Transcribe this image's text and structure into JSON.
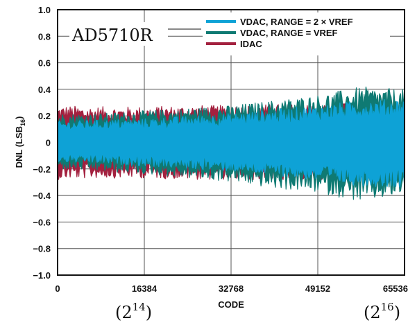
{
  "chart_data": {
    "type": "line",
    "title": "AD5710R",
    "xlabel": "CODE",
    "ylabel_main": "DNL (LSB",
    "ylabel_sub": "16",
    "ylabel_end": ")",
    "xlim": [
      0,
      65536
    ],
    "ylim": [
      -1.0,
      1.0
    ],
    "grid": true,
    "legend_position": "top-right",
    "x_ticks": [
      0,
      16384,
      32768,
      49152,
      65536
    ],
    "x_tick_labels": [
      "0",
      "16384",
      "32768",
      "49152",
      "65536"
    ],
    "y_ticks": [
      -1.0,
      -0.8,
      -0.6,
      -0.4,
      -0.2,
      0,
      0.2,
      0.4,
      0.6,
      0.8,
      1.0
    ],
    "y_tick_labels": [
      "−1.0",
      "−0.8",
      "−0.6",
      "−0.4",
      "−0.2",
      "0",
      "0.2",
      "0.4",
      "0.6",
      "0.8",
      "1.0"
    ],
    "x_annotations": [
      {
        "x": 16384,
        "base": "(2",
        "exp": "14",
        "end": ")"
      },
      {
        "x": 65536,
        "base": "(2",
        "exp": "16",
        "end": ")"
      }
    ],
    "series": [
      {
        "name": "IDAC",
        "color": "#a3213f",
        "x": [
          0,
          8192,
          16384,
          24576,
          32768,
          40960,
          49152,
          57344,
          65536
        ],
        "upper": [
          0.28,
          0.27,
          0.27,
          0.28,
          0.28,
          0.29,
          0.29,
          0.3,
          0.3
        ],
        "lower": [
          -0.28,
          -0.27,
          -0.27,
          -0.28,
          -0.28,
          -0.29,
          -0.29,
          -0.3,
          -0.3
        ]
      },
      {
        "name": "VDAC, RANGE = VREF",
        "color": "#0f7a73",
        "x": [
          0,
          8192,
          16384,
          24576,
          32768,
          40960,
          49152,
          57344,
          65536
        ],
        "upper": [
          0.22,
          0.22,
          0.24,
          0.26,
          0.28,
          0.32,
          0.36,
          0.42,
          0.4
        ],
        "lower": [
          -0.2,
          -0.22,
          -0.24,
          -0.27,
          -0.3,
          -0.35,
          -0.38,
          -0.45,
          -0.4
        ]
      },
      {
        "name": "VDAC, RANGE = 2 × VREF",
        "color": "#0ea2d6",
        "x": [
          0,
          8192,
          16384,
          24576,
          32768,
          40960,
          49152,
          57344,
          65536
        ],
        "upper": [
          0.16,
          0.17,
          0.18,
          0.2,
          0.22,
          0.25,
          0.28,
          0.32,
          0.33
        ],
        "lower": [
          -0.15,
          -0.16,
          -0.18,
          -0.2,
          -0.22,
          -0.25,
          -0.29,
          -0.33,
          -0.34
        ]
      }
    ],
    "legend_order": [
      2,
      1,
      0
    ]
  }
}
